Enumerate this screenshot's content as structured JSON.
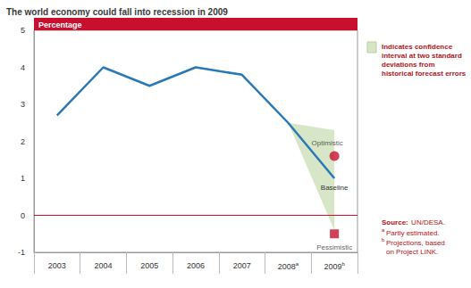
{
  "chart_data": {
    "type": "line",
    "title": "The world economy could fall into recession in 2009",
    "y_header": "Percentage",
    "categories": [
      "2003",
      "2004",
      "2005",
      "2006",
      "2007",
      "2008a",
      "2009b"
    ],
    "series": [
      {
        "name": "Baseline",
        "color": "#2a78b6",
        "values": [
          2.7,
          4.0,
          3.5,
          4.0,
          3.8,
          2.5,
          1.0
        ]
      }
    ],
    "scenarios": [
      {
        "name": "Optimistic",
        "category": "2009b",
        "value": 1.6,
        "marker": "circle",
        "color": "#c8102e"
      },
      {
        "name": "Pessimistic",
        "category": "2009b",
        "value": -0.5,
        "marker": "square",
        "color": "#c8102e"
      }
    ],
    "confidence_interval": {
      "label": "Indicates confidence interval at two standard deviations from historical forecast errors",
      "color": "#d6e6c6",
      "upper": [
        null,
        null,
        null,
        null,
        null,
        2.5,
        2.3
      ],
      "lower": [
        null,
        null,
        null,
        null,
        null,
        2.5,
        -0.4
      ]
    },
    "reference_line": {
      "y": 0,
      "color": "#c8102e"
    },
    "source": {
      "label": "Source:",
      "text": "UN/DESA."
    },
    "footnotes": [
      {
        "mark": "a",
        "text": "Partly estimated."
      },
      {
        "mark": "b",
        "text": "Projections, based on Project LINK."
      }
    ],
    "ylim": [
      -1,
      5
    ],
    "yticks": [
      -1,
      0,
      1,
      2,
      3,
      4,
      5
    ],
    "grid": false
  }
}
